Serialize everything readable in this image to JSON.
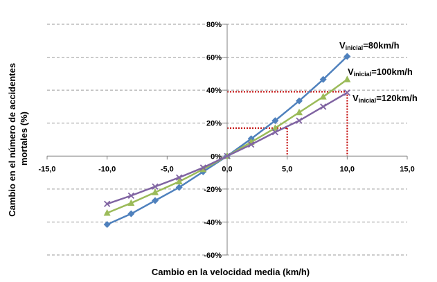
{
  "chart_data": {
    "type": "line",
    "title": "",
    "xlabel": "Cambio en la velocidad media (km/h)",
    "ylabel_lines": [
      "Cambio en el número de accidentes",
      "mortales (%)"
    ],
    "xlim": [
      -15,
      15
    ],
    "ylim": [
      -60,
      80
    ],
    "x_ticks": [
      -15,
      -10,
      -5,
      0,
      5,
      10,
      15
    ],
    "x_tick_labels": [
      "-15,0",
      "-10,0",
      "-5,0",
      "0,0",
      "5,0",
      "10,0",
      "15,0"
    ],
    "y_ticks": [
      -60,
      -40,
      -20,
      0,
      20,
      40,
      60,
      80
    ],
    "y_tick_labels": [
      "-60%",
      "-40%",
      "-20%",
      "0%",
      "20%",
      "40%",
      "60%",
      "80%"
    ],
    "grid": "horizontal-dashed",
    "series": [
      {
        "label_main": "V",
        "label_sub": "inicial",
        "label_rest": "=80km/h",
        "color": "#4f81bd",
        "marker": "diamond",
        "x": [
          -10,
          -8,
          -6,
          -4,
          -2,
          0,
          2,
          4,
          6,
          8,
          10
        ],
        "y": [
          -41.5,
          -35,
          -27,
          -19,
          -9.5,
          0,
          10.5,
          21.5,
          33.5,
          46.5,
          60.5
        ]
      },
      {
        "label_main": "V",
        "label_sub": "inicial",
        "label_rest": "=100km/h",
        "color": "#9bbb59",
        "marker": "triangle",
        "x": [
          -10,
          -8,
          -6,
          -4,
          -2,
          0,
          2,
          4,
          6,
          8,
          10
        ],
        "y": [
          -34.5,
          -28.5,
          -22,
          -15.5,
          -8,
          0,
          8.5,
          17,
          26.5,
          36,
          46.5
        ]
      },
      {
        "label_main": "V",
        "label_sub": "inicial",
        "label_rest": "=120km/h",
        "color": "#8064a2",
        "marker": "x",
        "x": [
          -10,
          -8,
          -6,
          -4,
          -2,
          0,
          2,
          4,
          6,
          8,
          10
        ],
        "y": [
          -29,
          -24,
          -18.5,
          -13,
          -7,
          0,
          7,
          14.5,
          21.5,
          30,
          38.5
        ]
      }
    ],
    "reference_lines": [
      {
        "color": "#c00000",
        "x": 5,
        "y": 17
      },
      {
        "color": "#c00000",
        "x": 10,
        "y": 39
      }
    ]
  }
}
